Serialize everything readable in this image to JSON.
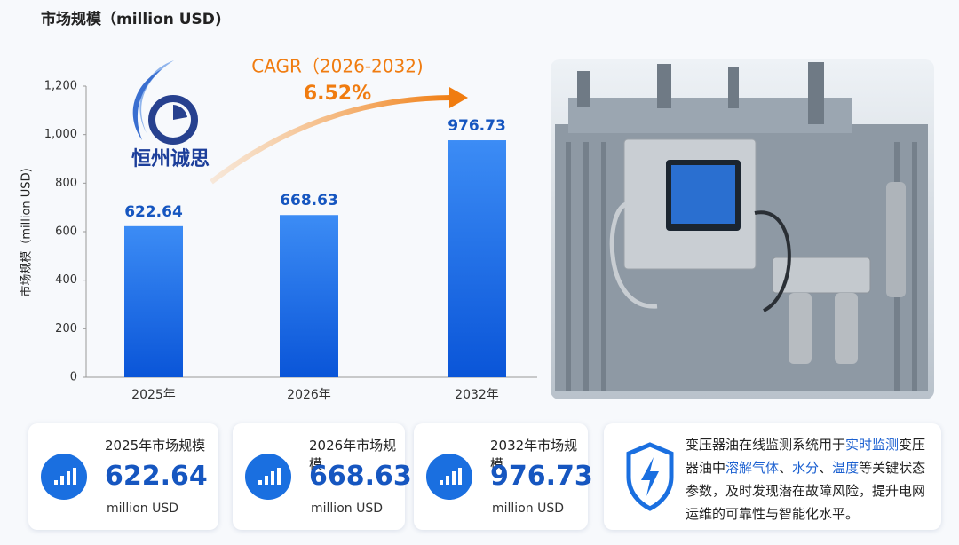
{
  "chart_data": {
    "type": "bar",
    "title": "市场规模（million USD)",
    "y_label": "市场规模（million USD)",
    "categories": [
      "2025年",
      "2026年",
      "2032年"
    ],
    "values": [
      622.64,
      668.63,
      976.73
    ],
    "color": "#1a6fe0",
    "ylim": [
      0,
      1200
    ],
    "yticks": [
      0,
      200,
      400,
      600,
      800,
      {
        "value": 1000,
        "label": "1,000"
      },
      {
        "value": 1200,
        "label": "1,200"
      }
    ],
    "annotations": [
      "CAGR（2026-2032)",
      "6.52%"
    ]
  },
  "logo": "恒州诚思",
  "cards": [
    {
      "title": "2025年市场规模",
      "unit": "million USD"
    },
    {
      "title": "2026年市场规模",
      "unit": "million USD"
    },
    {
      "title": "2032年市场规模",
      "unit": "million USD"
    }
  ],
  "description": [
    "变压器油在线监测系统用于",
    "实时监测",
    "变压器油中",
    "溶解气体",
    "、",
    "水分",
    "、",
    "温度",
    "等关键状态参数，及时发现潜在故障风险，提升电网运维的可靠性与智能化水平。"
  ]
}
